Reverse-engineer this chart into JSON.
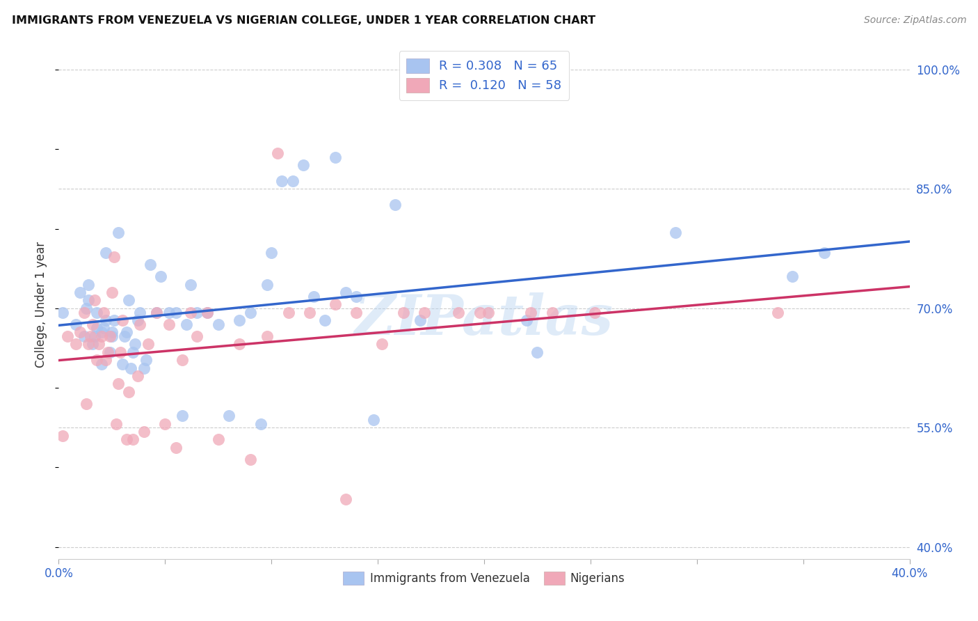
{
  "title": "IMMIGRANTS FROM VENEZUELA VS NIGERIAN COLLEGE, UNDER 1 YEAR CORRELATION CHART",
  "source": "Source: ZipAtlas.com",
  "ylabel": "College, Under 1 year",
  "ytick_labels": [
    "100.0%",
    "85.0%",
    "70.0%",
    "55.0%",
    "40.0%"
  ],
  "ytick_values": [
    1.0,
    0.85,
    0.7,
    0.55,
    0.4
  ],
  "xtick_values": [
    0.0,
    0.05,
    0.1,
    0.15,
    0.2,
    0.25,
    0.3,
    0.35,
    0.4
  ],
  "xlim": [
    0.0,
    0.4
  ],
  "ylim": [
    0.385,
    1.025
  ],
  "watermark": "ZIPatlas",
  "legend_bottom": [
    {
      "label": "Immigrants from Venezuela",
      "color": "#a8c4f0"
    },
    {
      "label": "Nigerians",
      "color": "#f0a8b8"
    }
  ],
  "venezuela_r": 0.308,
  "venezuela_n": 65,
  "nigerian_r": 0.12,
  "nigerian_n": 58,
  "blue_line_color": "#3366cc",
  "pink_line_color": "#cc3366",
  "blue_dot_color": "#a8c4f0",
  "pink_dot_color": "#f0a8b8",
  "venezuela_x": [
    0.002,
    0.008,
    0.01,
    0.012,
    0.013,
    0.014,
    0.014,
    0.016,
    0.017,
    0.018,
    0.018,
    0.02,
    0.02,
    0.021,
    0.022,
    0.022,
    0.024,
    0.025,
    0.025,
    0.026,
    0.028,
    0.03,
    0.031,
    0.032,
    0.033,
    0.034,
    0.035,
    0.036,
    0.037,
    0.038,
    0.04,
    0.041,
    0.043,
    0.046,
    0.048,
    0.052,
    0.055,
    0.058,
    0.06,
    0.062,
    0.065,
    0.07,
    0.075,
    0.08,
    0.085,
    0.09,
    0.095,
    0.098,
    0.1,
    0.105,
    0.11,
    0.115,
    0.12,
    0.125,
    0.13,
    0.135,
    0.14,
    0.148,
    0.158,
    0.17,
    0.22,
    0.225,
    0.29,
    0.345,
    0.36
  ],
  "venezuela_y": [
    0.695,
    0.68,
    0.72,
    0.665,
    0.7,
    0.71,
    0.73,
    0.655,
    0.665,
    0.675,
    0.695,
    0.63,
    0.67,
    0.675,
    0.685,
    0.77,
    0.645,
    0.665,
    0.67,
    0.685,
    0.795,
    0.63,
    0.665,
    0.67,
    0.71,
    0.625,
    0.645,
    0.655,
    0.685,
    0.695,
    0.625,
    0.635,
    0.755,
    0.695,
    0.74,
    0.695,
    0.695,
    0.565,
    0.68,
    0.73,
    0.695,
    0.695,
    0.68,
    0.565,
    0.685,
    0.695,
    0.555,
    0.73,
    0.77,
    0.86,
    0.86,
    0.88,
    0.715,
    0.685,
    0.89,
    0.72,
    0.715,
    0.56,
    0.83,
    0.685,
    0.685,
    0.645,
    0.795,
    0.74,
    0.77
  ],
  "nigerian_x": [
    0.002,
    0.004,
    0.008,
    0.01,
    0.012,
    0.013,
    0.014,
    0.015,
    0.016,
    0.017,
    0.018,
    0.019,
    0.02,
    0.021,
    0.022,
    0.023,
    0.024,
    0.025,
    0.026,
    0.027,
    0.028,
    0.029,
    0.03,
    0.032,
    0.033,
    0.035,
    0.037,
    0.038,
    0.04,
    0.042,
    0.046,
    0.05,
    0.052,
    0.055,
    0.058,
    0.062,
    0.065,
    0.07,
    0.075,
    0.085,
    0.09,
    0.098,
    0.103,
    0.108,
    0.118,
    0.13,
    0.135,
    0.14,
    0.152,
    0.162,
    0.172,
    0.188,
    0.198,
    0.202,
    0.222,
    0.232,
    0.252,
    0.338
  ],
  "nigerian_y": [
    0.54,
    0.665,
    0.655,
    0.67,
    0.695,
    0.58,
    0.655,
    0.665,
    0.68,
    0.71,
    0.635,
    0.655,
    0.665,
    0.695,
    0.635,
    0.645,
    0.665,
    0.72,
    0.765,
    0.555,
    0.605,
    0.645,
    0.685,
    0.535,
    0.595,
    0.535,
    0.615,
    0.68,
    0.545,
    0.655,
    0.695,
    0.555,
    0.68,
    0.525,
    0.635,
    0.695,
    0.665,
    0.695,
    0.535,
    0.655,
    0.51,
    0.665,
    0.895,
    0.695,
    0.695,
    0.705,
    0.46,
    0.695,
    0.655,
    0.695,
    0.695,
    0.695,
    0.695,
    0.695,
    0.695,
    0.695,
    0.695,
    0.695
  ]
}
